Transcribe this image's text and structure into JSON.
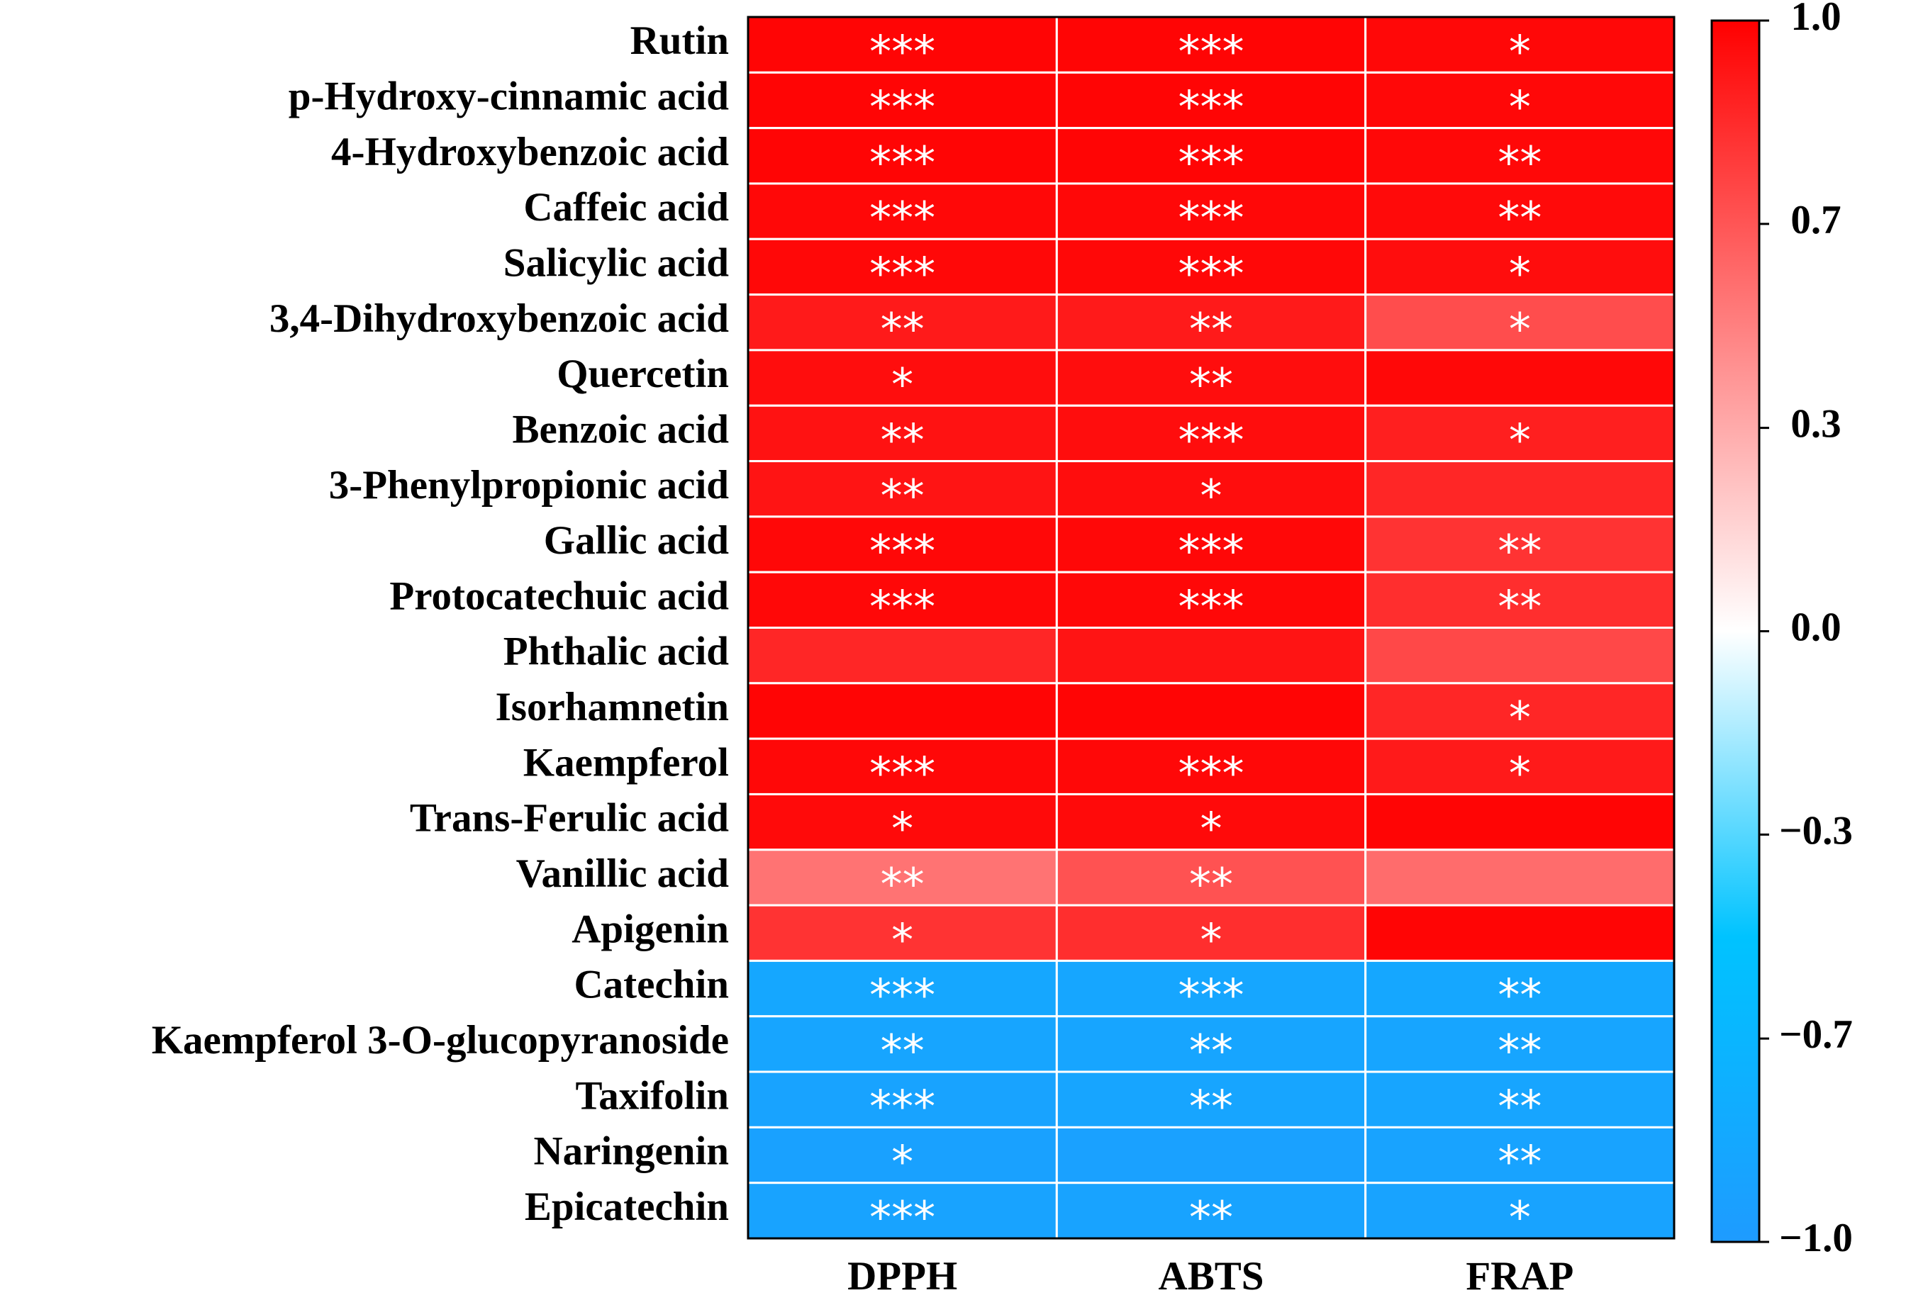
{
  "chart_data": {
    "type": "heatmap",
    "rows": [
      "Rutin",
      "p-Hydroxy-cinnamic acid",
      "4-Hydroxybenzoic acid",
      "Caffeic acid",
      "Salicylic acid",
      "3,4-Dihydroxybenzoic acid",
      "Quercetin",
      "Benzoic acid",
      "3-Phenylpropionic acid",
      "Gallic acid",
      "Protocatechuic acid",
      "Phthalic acid",
      "Isorhamnetin",
      "Kaempferol",
      "Trans-Ferulic acid",
      "Vanillic acid",
      "Apigenin",
      "Catechin",
      "Kaempferol 3-O-glucopyranoside",
      "Taxifolin",
      "Naringenin",
      "Epicatechin"
    ],
    "columns": [
      "DPPH",
      "ABTS",
      "FRAP"
    ],
    "values": [
      [
        0.98,
        0.98,
        0.97
      ],
      [
        0.98,
        0.98,
        0.97
      ],
      [
        0.98,
        0.98,
        0.97
      ],
      [
        0.97,
        0.97,
        0.96
      ],
      [
        0.97,
        0.97,
        0.95
      ],
      [
        0.9,
        0.9,
        0.7
      ],
      [
        0.95,
        0.95,
        0.97
      ],
      [
        0.93,
        0.95,
        0.88
      ],
      [
        0.92,
        0.95,
        0.85
      ],
      [
        0.97,
        0.97,
        0.8
      ],
      [
        0.97,
        0.97,
        0.82
      ],
      [
        0.85,
        0.92,
        0.72
      ],
      [
        0.98,
        0.98,
        0.85
      ],
      [
        0.97,
        0.97,
        0.9
      ],
      [
        0.96,
        0.96,
        0.98
      ],
      [
        0.55,
        0.68,
        0.58
      ],
      [
        0.8,
        0.82,
        0.98
      ],
      [
        -0.85,
        -0.86,
        -0.85
      ],
      [
        -0.88,
        -0.88,
        -0.88
      ],
      [
        -0.9,
        -0.88,
        -0.88
      ],
      [
        -0.92,
        -0.93,
        -0.9
      ],
      [
        -0.9,
        -0.9,
        -0.9
      ]
    ],
    "annotations": [
      [
        "***",
        "***",
        "*"
      ],
      [
        "***",
        "***",
        "*"
      ],
      [
        "***",
        "***",
        "**"
      ],
      [
        "***",
        "***",
        "**"
      ],
      [
        "***",
        "***",
        "*"
      ],
      [
        "**",
        "**",
        "*"
      ],
      [
        "*",
        "**",
        null
      ],
      [
        "**",
        "***",
        "*"
      ],
      [
        "**",
        "*",
        null
      ],
      [
        "***",
        "***",
        "**"
      ],
      [
        "***",
        "***",
        "**"
      ],
      [
        null,
        null,
        null
      ],
      [
        null,
        null,
        "*"
      ],
      [
        "***",
        "***",
        "*"
      ],
      [
        "*",
        "*",
        null
      ],
      [
        "**",
        "**",
        null
      ],
      [
        "*",
        "*",
        null
      ],
      [
        "***",
        "***",
        "**"
      ],
      [
        "**",
        "**",
        "**"
      ],
      [
        "***",
        "**",
        "**"
      ],
      [
        "*",
        null,
        "**"
      ],
      [
        "***",
        "**",
        "*"
      ]
    ],
    "colormap": [
      "#1e9bff",
      "#00c3ff",
      "#ffffff",
      "#ff8080",
      "#ff0000"
    ],
    "clim": [
      -1,
      1
    ],
    "cticks": [
      {
        "value": 1,
        "label": "1.0"
      },
      {
        "value": 0.667,
        "label": "0.7"
      },
      {
        "value": 0.333,
        "label": "0.3"
      },
      {
        "value": 0,
        "label": "0.0"
      },
      {
        "value": -0.333,
        "label": "−0.3"
      },
      {
        "value": -0.667,
        "label": "−0.7"
      },
      {
        "value": -1,
        "label": "−1.0"
      }
    ]
  }
}
